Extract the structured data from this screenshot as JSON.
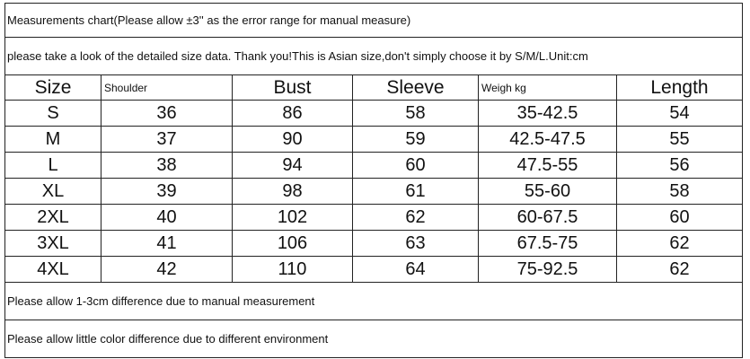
{
  "header": {
    "lines": [
      "Measurements chart(Please allow ±3'' as the error range for manual measure)",
      "please take a look of the detailed size data. Thank you!This is Asian size,don't simply choose it by S/M/L.Unit:cm"
    ]
  },
  "table": {
    "columns": [
      "Size",
      "Shoulder",
      "Bust",
      "Sleeve",
      "Weigh kg",
      "Length"
    ],
    "rows": [
      [
        "S",
        36,
        86,
        58,
        "35-42.5",
        54
      ],
      [
        "M",
        37,
        90,
        59,
        "42.5-47.5",
        55
      ],
      [
        "L",
        38,
        94,
        60,
        "47.5-55",
        56
      ],
      [
        "XL",
        39,
        98,
        61,
        "55-60",
        58
      ],
      [
        "2XL",
        40,
        102,
        62,
        "60-67.5",
        60
      ],
      [
        "3XL",
        41,
        106,
        63,
        "67.5-75",
        62
      ],
      [
        "4XL",
        42,
        110,
        64,
        "75-92.5",
        62
      ]
    ]
  },
  "footer": {
    "notes": [
      "Please allow 1-3cm difference due to manual measurement",
      "Please allow little color difference due to different environment"
    ]
  }
}
